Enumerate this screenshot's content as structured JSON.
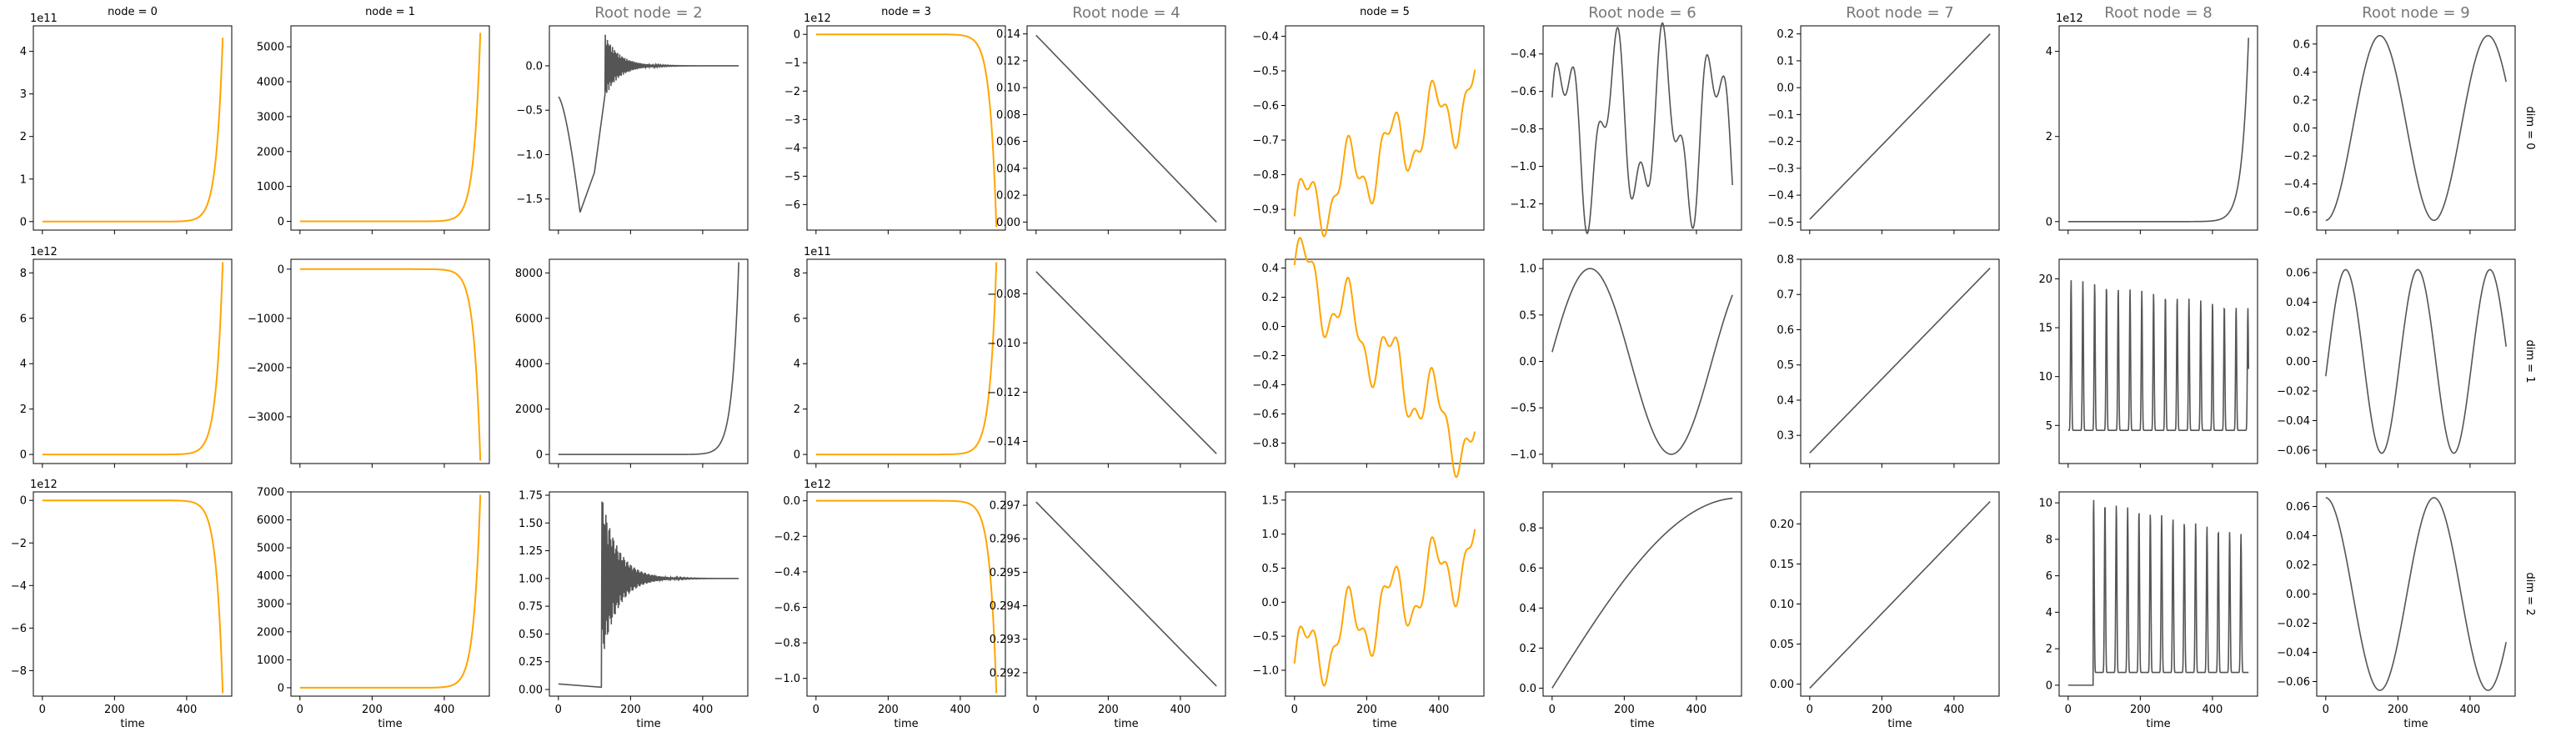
{
  "figure": {
    "x_axis_label": "time",
    "x_ticks": [
      0,
      200,
      400
    ],
    "series_colors": {
      "highlight": "#FFA500",
      "default": "#555555"
    }
  },
  "chart_data": [
    {
      "type": "line",
      "col": 0,
      "row": 0,
      "title": "node = 0",
      "row_label": "",
      "color": "orange",
      "shape": "exp_up",
      "x_range": [
        0,
        500
      ],
      "ylim": [
        -0.2,
        4.6
      ],
      "yticks": [
        "0",
        "1",
        "2",
        "3",
        "4"
      ],
      "yoffset": "1e11",
      "xlabel": ""
    },
    {
      "type": "line",
      "col": 1,
      "row": 0,
      "title": "node = 1",
      "row_label": "",
      "color": "orange",
      "shape": "exp_up",
      "x_range": [
        0,
        500
      ],
      "ylim": [
        -250,
        5600
      ],
      "yticks": [
        "0",
        "1000",
        "2000",
        "3000",
        "4000",
        "5000"
      ],
      "yoffset": "",
      "xlabel": ""
    },
    {
      "type": "line",
      "col": 2,
      "row": 0,
      "title": "Root node = 2",
      "row_label": "",
      "color": "gray",
      "shape": "chaos_a",
      "x_range": [
        0,
        500
      ],
      "ylim": [
        -1.85,
        0.45
      ],
      "yticks": [
        "−1.5",
        "−1.0",
        "−0.5",
        "0.0"
      ],
      "yoffset": "",
      "xlabel": ""
    },
    {
      "type": "line",
      "col": 3,
      "row": 0,
      "title": "node = 3",
      "row_label": "",
      "color": "orange",
      "shape": "exp_down",
      "x_range": [
        0,
        500
      ],
      "ylim": [
        -6.9,
        0.3
      ],
      "yticks": [
        "−6",
        "−5",
        "−4",
        "−3",
        "−2",
        "−1",
        "0"
      ],
      "yoffset": "1e12",
      "xlabel": ""
    },
    {
      "type": "line",
      "col": 4,
      "row": 0,
      "title": "Root node = 4",
      "row_label": "",
      "color": "gray",
      "shape": "lin",
      "x_range": [
        0,
        500
      ],
      "ylim": [
        -0.006,
        0.146
      ],
      "yticks": [
        "0.00",
        "0.02",
        "0.04",
        "0.06",
        "0.08",
        "0.10",
        "0.12",
        "0.14"
      ],
      "yoffset": "",
      "xlabel": "",
      "line": [
        0.139,
        0.0
      ]
    },
    {
      "type": "line",
      "col": 5,
      "row": 0,
      "title": "node = 5",
      "row_label": "",
      "color": "orange",
      "shape": "wavy_up",
      "x_range": [
        0,
        500
      ],
      "ylim": [
        -0.96,
        -0.37
      ],
      "yticks": [
        "−0.9",
        "−0.8",
        "−0.7",
        "−0.6",
        "−0.5",
        "−0.4"
      ],
      "yoffset": "",
      "xlabel": "",
      "wave": [
        -0.92,
        -0.56
      ]
    },
    {
      "type": "line",
      "col": 6,
      "row": 0,
      "title": "Root node = 6",
      "row_label": "",
      "color": "gray",
      "shape": "osc_a",
      "x_range": [
        0,
        500
      ],
      "ylim": [
        -1.34,
        -0.25
      ],
      "yticks": [
        "−1.2",
        "−1.0",
        "−0.8",
        "−0.6",
        "−0.4"
      ],
      "yoffset": "",
      "xlabel": ""
    },
    {
      "type": "line",
      "col": 7,
      "row": 0,
      "title": "Root node = 7",
      "row_label": "",
      "color": "gray",
      "shape": "lin",
      "x_range": [
        0,
        500
      ],
      "ylim": [
        -0.53,
        0.23
      ],
      "yticks": [
        "−0.5",
        "−0.4",
        "−0.3",
        "−0.2",
        "−0.1",
        "0.0",
        "0.1",
        "0.2"
      ],
      "yoffset": "",
      "xlabel": "",
      "line": [
        -0.49,
        0.2
      ]
    },
    {
      "type": "line",
      "col": 8,
      "row": 0,
      "title": "Root node = 8",
      "row_label": "",
      "color": "gray",
      "shape": "exp_up",
      "x_range": [
        0,
        500
      ],
      "ylim": [
        -0.2,
        4.6
      ],
      "yticks": [
        "0",
        "2",
        "4"
      ],
      "yoffset": "1e12",
      "xlabel": ""
    },
    {
      "type": "line",
      "col": 9,
      "row": 0,
      "title": "Root node = 9",
      "row_label": "dim = 0",
      "color": "gray",
      "shape": "sine",
      "x_range": [
        0,
        500
      ],
      "ylim": [
        -0.73,
        0.73
      ],
      "yticks": [
        "−0.6",
        "−0.4",
        "−0.2",
        "0.0",
        "0.2",
        "0.4",
        "0.6"
      ],
      "yoffset": "",
      "xlabel": "",
      "sine": [
        0.66,
        300,
        -0.67
      ]
    },
    {
      "type": "line",
      "col": 0,
      "row": 1,
      "title": "",
      "row_label": "",
      "color": "orange",
      "shape": "exp_up",
      "x_range": [
        0,
        500
      ],
      "ylim": [
        -0.4,
        8.6
      ],
      "yticks": [
        "0",
        "2",
        "4",
        "6",
        "8"
      ],
      "yoffset": "1e12",
      "xlabel": ""
    },
    {
      "type": "line",
      "col": 1,
      "row": 1,
      "title": "",
      "row_label": "",
      "color": "orange",
      "shape": "exp_down",
      "x_range": [
        0,
        500
      ],
      "ylim": [
        -3950,
        200
      ],
      "yticks": [
        "−3000",
        "−2000",
        "−1000",
        "0"
      ],
      "yoffset": "",
      "xlabel": ""
    },
    {
      "type": "line",
      "col": 2,
      "row": 1,
      "title": "",
      "row_label": "",
      "color": "gray",
      "shape": "exp_up",
      "x_range": [
        0,
        500
      ],
      "ylim": [
        -400,
        8600
      ],
      "yticks": [
        "0",
        "2000",
        "4000",
        "6000",
        "8000"
      ],
      "yoffset": "",
      "xlabel": ""
    },
    {
      "type": "line",
      "col": 3,
      "row": 1,
      "title": "",
      "row_label": "",
      "color": "orange",
      "shape": "exp_up",
      "x_range": [
        0,
        500
      ],
      "ylim": [
        -0.4,
        8.6
      ],
      "yticks": [
        "0",
        "2",
        "4",
        "6",
        "8"
      ],
      "yoffset": "1e11",
      "xlabel": ""
    },
    {
      "type": "line",
      "col": 4,
      "row": 1,
      "title": "",
      "row_label": "",
      "color": "gray",
      "shape": "lin",
      "x_range": [
        0,
        500
      ],
      "ylim": [
        -0.149,
        -0.066
      ],
      "yticks": [
        "−0.14",
        "−0.12",
        "−0.10",
        "−0.08"
      ],
      "yoffset": "",
      "xlabel": "",
      "line": [
        -0.071,
        -0.145
      ]
    },
    {
      "type": "line",
      "col": 5,
      "row": 1,
      "title": "",
      "row_label": "",
      "color": "orange",
      "shape": "wavy_down",
      "x_range": [
        0,
        500
      ],
      "ylim": [
        -0.94,
        0.46
      ],
      "yticks": [
        "−0.8",
        "−0.6",
        "−0.4",
        "−0.2",
        "0.0",
        "0.2",
        "0.4"
      ],
      "yoffset": "",
      "xlabel": "",
      "wave": [
        0.42,
        -0.87
      ]
    },
    {
      "type": "line",
      "col": 6,
      "row": 1,
      "title": "",
      "row_label": "",
      "color": "gray",
      "shape": "sine",
      "x_range": [
        0,
        500
      ],
      "ylim": [
        -1.1,
        1.1
      ],
      "yticks": [
        "−1.0",
        "−0.5",
        "0.0",
        "0.5",
        "1.0"
      ],
      "yoffset": "",
      "xlabel": "",
      "sine": [
        1.0,
        450,
        0.1
      ]
    },
    {
      "type": "line",
      "col": 7,
      "row": 1,
      "title": "",
      "row_label": "",
      "color": "gray",
      "shape": "lin",
      "x_range": [
        0,
        500
      ],
      "ylim": [
        0.22,
        0.8
      ],
      "yticks": [
        "0.3",
        "0.4",
        "0.5",
        "0.6",
        "0.7",
        "0.8"
      ],
      "yoffset": "",
      "xlabel": "",
      "line": [
        0.25,
        0.775
      ]
    },
    {
      "type": "line",
      "col": 8,
      "row": 1,
      "title": "",
      "row_label": "",
      "color": "gray",
      "shape": "spiky_b",
      "x_range": [
        0,
        500
      ],
      "ylim": [
        1.1,
        22.0
      ],
      "yticks": [
        "5",
        "10",
        "15",
        "20"
      ],
      "yoffset": "",
      "xlabel": ""
    },
    {
      "type": "line",
      "col": 9,
      "row": 1,
      "title": "",
      "row_label": "dim = 1",
      "color": "gray",
      "shape": "sine",
      "x_range": [
        0,
        500
      ],
      "ylim": [
        -0.069,
        0.069
      ],
      "yticks": [
        "−0.06",
        "−0.04",
        "−0.02",
        "0.00",
        "0.02",
        "0.04",
        "0.06"
      ],
      "yoffset": "",
      "xlabel": "",
      "sine": [
        0.062,
        200,
        -0.01
      ]
    },
    {
      "type": "line",
      "col": 0,
      "row": 2,
      "title": "",
      "row_label": "",
      "color": "orange",
      "shape": "exp_down",
      "x_range": [
        0,
        500
      ],
      "ylim": [
        -9.2,
        0.4
      ],
      "yticks": [
        "−8",
        "−6",
        "−4",
        "−2",
        "0"
      ],
      "yoffset": "1e12",
      "xlabel": "time"
    },
    {
      "type": "line",
      "col": 1,
      "row": 2,
      "title": "",
      "row_label": "",
      "color": "orange",
      "shape": "exp_up",
      "x_range": [
        0,
        500
      ],
      "ylim": [
        -300,
        7000
      ],
      "yticks": [
        "0",
        "1000",
        "2000",
        "3000",
        "4000",
        "5000",
        "6000",
        "7000"
      ],
      "yoffset": "",
      "xlabel": "time"
    },
    {
      "type": "line",
      "col": 2,
      "row": 2,
      "title": "",
      "row_label": "",
      "color": "gray",
      "shape": "chaos_b",
      "x_range": [
        0,
        500
      ],
      "ylim": [
        -0.06,
        1.78
      ],
      "yticks": [
        "0.00",
        "0.25",
        "0.50",
        "0.75",
        "1.00",
        "1.25",
        "1.50",
        "1.75"
      ],
      "yoffset": "",
      "xlabel": "time"
    },
    {
      "type": "line",
      "col": 3,
      "row": 2,
      "title": "",
      "row_label": "",
      "color": "orange",
      "shape": "exp_down",
      "x_range": [
        0,
        500
      ],
      "ylim": [
        -1.1,
        0.05
      ],
      "yticks": [
        "−1.0",
        "−0.8",
        "−0.6",
        "−0.4",
        "−0.2",
        "0.0"
      ],
      "yoffset": "1e12",
      "xlabel": "time"
    },
    {
      "type": "line",
      "col": 4,
      "row": 2,
      "title": "",
      "row_label": "",
      "color": "gray",
      "shape": "lin",
      "x_range": [
        0,
        500
      ],
      "ylim": [
        0.2913,
        0.2974
      ],
      "yticks": [
        "0.292",
        "0.293",
        "0.294",
        "0.295",
        "0.296",
        "0.297"
      ],
      "yoffset": "",
      "xlabel": "time",
      "line": [
        0.2971,
        0.2916
      ]
    },
    {
      "type": "line",
      "col": 5,
      "row": 2,
      "title": "",
      "row_label": "",
      "color": "orange",
      "shape": "wavy_up",
      "x_range": [
        0,
        500
      ],
      "ylim": [
        -1.38,
        1.62
      ],
      "yticks": [
        "−1.0",
        "−0.5",
        "0.0",
        "0.5",
        "1.0",
        "1.5"
      ],
      "yoffset": "",
      "xlabel": "time",
      "wave": [
        -0.9,
        0.75
      ]
    },
    {
      "type": "line",
      "col": 6,
      "row": 2,
      "title": "",
      "row_label": "",
      "color": "gray",
      "shape": "sat",
      "x_range": [
        0,
        500
      ],
      "ylim": [
        -0.04,
        0.98
      ],
      "yticks": [
        "0.0",
        "0.2",
        "0.4",
        "0.6",
        "0.8"
      ],
      "yoffset": "",
      "xlabel": "time"
    },
    {
      "type": "line",
      "col": 7,
      "row": 2,
      "title": "",
      "row_label": "",
      "color": "gray",
      "shape": "lin",
      "x_range": [
        0,
        500
      ],
      "ylim": [
        -0.015,
        0.24
      ],
      "yticks": [
        "0.00",
        "0.05",
        "0.10",
        "0.15",
        "0.20"
      ],
      "yoffset": "",
      "xlabel": "time",
      "line": [
        -0.005,
        0.228
      ]
    },
    {
      "type": "line",
      "col": 8,
      "row": 2,
      "title": "",
      "row_label": "",
      "color": "gray",
      "shape": "spiky_c",
      "x_range": [
        0,
        500
      ],
      "ylim": [
        -0.6,
        10.6
      ],
      "yticks": [
        "0",
        "2",
        "4",
        "6",
        "8",
        "10"
      ],
      "yoffset": "",
      "xlabel": "time"
    },
    {
      "type": "line",
      "col": 9,
      "row": 2,
      "title": "",
      "row_label": "dim = 2",
      "color": "gray",
      "shape": "sine",
      "x_range": [
        0,
        500
      ],
      "ylim": [
        -0.07,
        0.07
      ],
      "yticks": [
        "−0.06",
        "−0.04",
        "−0.02",
        "0.00",
        "0.02",
        "0.04",
        "0.06"
      ],
      "yoffset": "",
      "xlabel": "time",
      "sine": [
        0.066,
        300,
        0.28
      ]
    }
  ]
}
